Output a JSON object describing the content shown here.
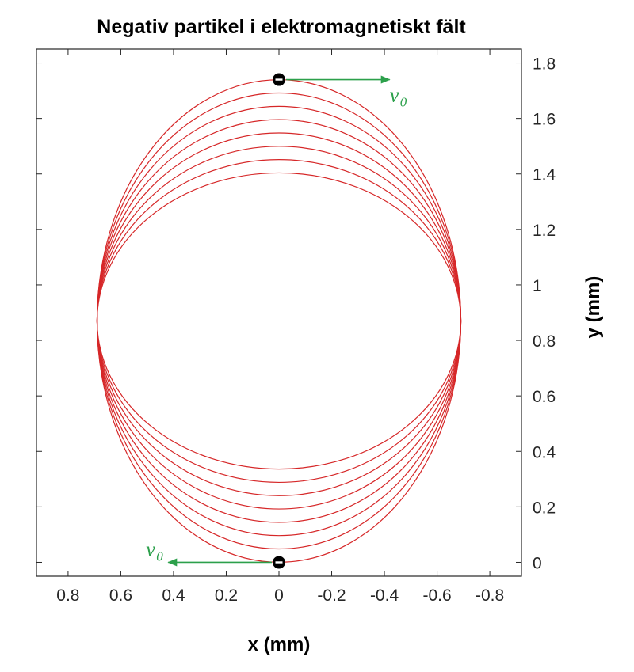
{
  "chart_data": {
    "type": "line",
    "title": "Negativ partikel i elektromagnetiskt fält",
    "xlabel": "x (mm)",
    "ylabel": "y (mm)",
    "xlim": [
      0.92,
      -0.92
    ],
    "ylim": [
      -0.05,
      1.85
    ],
    "x_ticks": [
      0.8,
      0.6,
      0.4,
      0.2,
      0,
      -0.2,
      -0.4,
      -0.6,
      -0.8
    ],
    "x_tick_labels": [
      "0.8",
      "0.6",
      "0.4",
      "0.2",
      "0",
      "-0.2",
      "-0.4",
      "-0.6",
      "-0.8"
    ],
    "y_ticks": [
      0,
      0.2,
      0.4,
      0.6,
      0.8,
      1,
      1.2,
      1.4,
      1.6,
      1.8
    ],
    "y_tick_labels": [
      "0",
      "0.2",
      "0.4",
      "0.6",
      "0.8",
      "1",
      "1.2",
      "1.4",
      "1.6",
      "1.8"
    ],
    "grid": false,
    "x_axis_reversed": true,
    "y_axis_position": "right",
    "trajectory": {
      "color": "#d62728",
      "center_y": 0.87,
      "half_width": 0.69,
      "half_height_start": 0.87,
      "loops": 8,
      "step": 0.048
    },
    "annotations": [
      {
        "label": "v",
        "subscript": "0",
        "color": "#2ca04b",
        "particle_x": 0,
        "particle_y": 1.74,
        "arrow_to_x": -0.42,
        "arrow_to_y": 1.74
      },
      {
        "label": "v",
        "subscript": "0",
        "color": "#2ca04b",
        "particle_x": 0,
        "particle_y": 0,
        "arrow_to_x": 0.42,
        "arrow_to_y": 0
      }
    ]
  }
}
